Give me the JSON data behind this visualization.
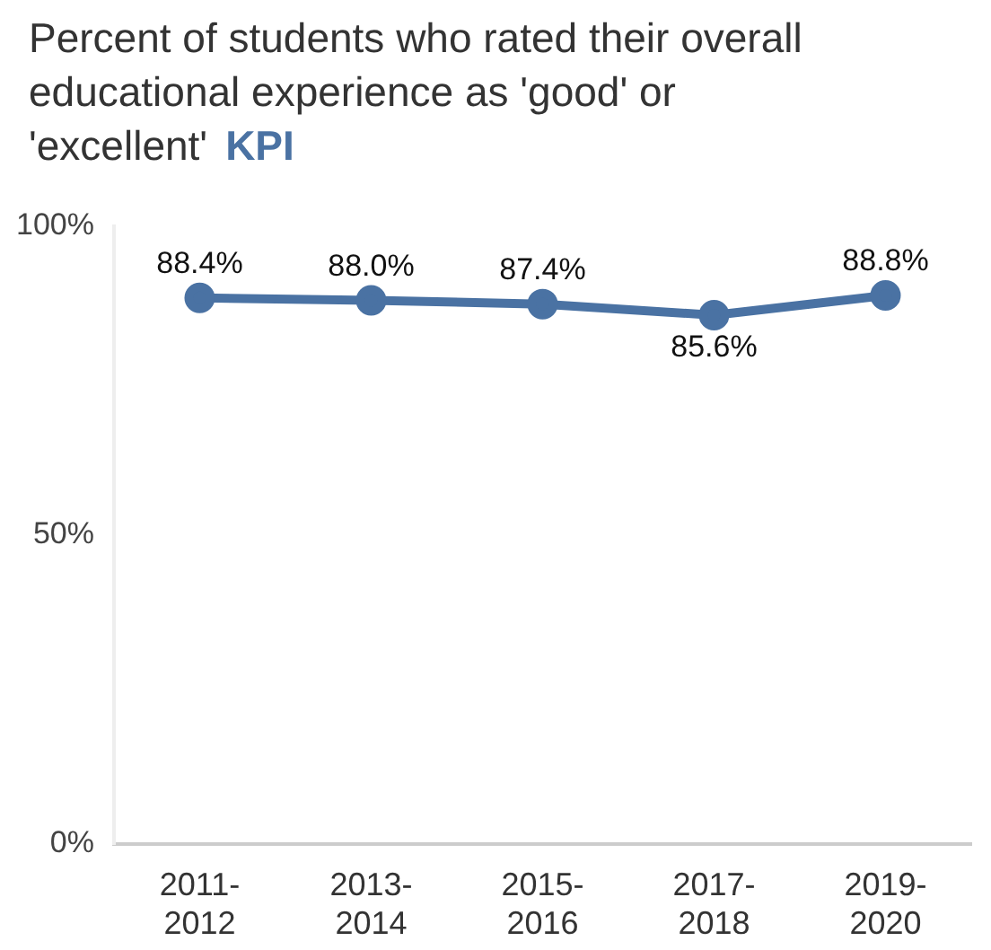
{
  "chart_data": {
    "type": "line",
    "title": "Percent of students who rated their overall educational experience as 'good' or 'excellent'",
    "subtitle": "KPI",
    "categories": [
      "2011-\n2012",
      "2013-\n2014",
      "2015-\n2016",
      "2017-\n2018",
      "2019-\n2020"
    ],
    "series": [
      {
        "color": "#4a72a3",
        "values": [
          88.4,
          88.0,
          87.4,
          85.6,
          88.8
        ],
        "value_labels": [
          "88.4%",
          "88.0%",
          "87.4%",
          "85.6%",
          "88.8%"
        ]
      }
    ],
    "ylim": [
      0,
      100
    ],
    "yticks": [
      {
        "value": 0,
        "label": "0%"
      },
      {
        "value": 50,
        "label": "50%"
      },
      {
        "value": 100,
        "label": "100%"
      }
    ],
    "marker": "circle",
    "grid": false,
    "legend": false
  }
}
